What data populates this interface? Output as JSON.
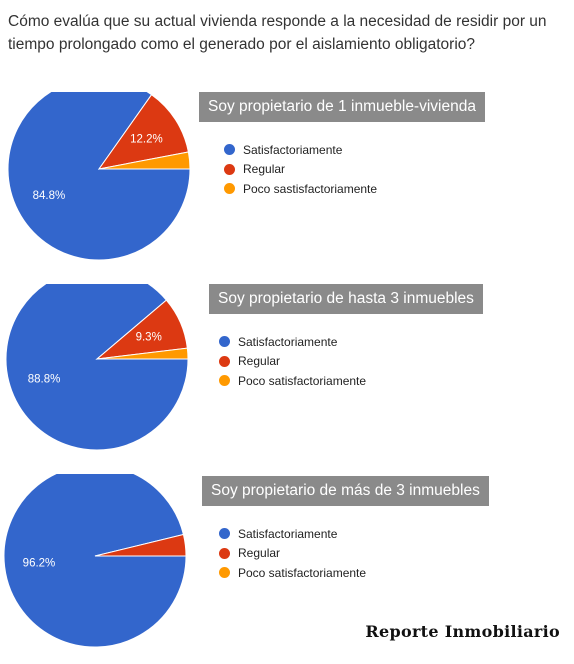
{
  "question": "Cómo evalúa que su actual vivienda responde a la necesidad de residir por un tiempo prolongado como el generado por el aislamiento obligatorio?",
  "colors": {
    "satisfactorio": "#3366cc",
    "regular": "#dc3912",
    "poco": "#ff9900",
    "title_bg": "#8a8a8a"
  },
  "chart_data": [
    {
      "type": "pie",
      "title": "Soy propietario de 1 inmueble-vivienda",
      "categories": [
        "Satisfactoriamente",
        "Regular",
        "Poco sastisfactoriamente"
      ],
      "values": [
        84.8,
        12.2,
        3.0
      ],
      "labels": [
        "84.8%",
        "12.2%",
        ""
      ],
      "legend": "right"
    },
    {
      "type": "pie",
      "title": "Soy propietario de hasta 3 inmuebles",
      "categories": [
        "Satisfactoriamente",
        "Regular",
        "Poco satisfactoriamente"
      ],
      "values": [
        88.8,
        9.3,
        1.9
      ],
      "labels": [
        "88.8%",
        "9.3%",
        ""
      ],
      "legend": "right"
    },
    {
      "type": "pie",
      "title": "Soy propietario de más de 3 inmuebles",
      "categories": [
        "Satisfactoriamente",
        "Regular",
        "Poco satisfactoriamente"
      ],
      "values": [
        96.2,
        3.8,
        0
      ],
      "labels": [
        "96.2%",
        "",
        ""
      ],
      "legend": "right"
    }
  ],
  "watermark": "Reporte Inmobiliario"
}
